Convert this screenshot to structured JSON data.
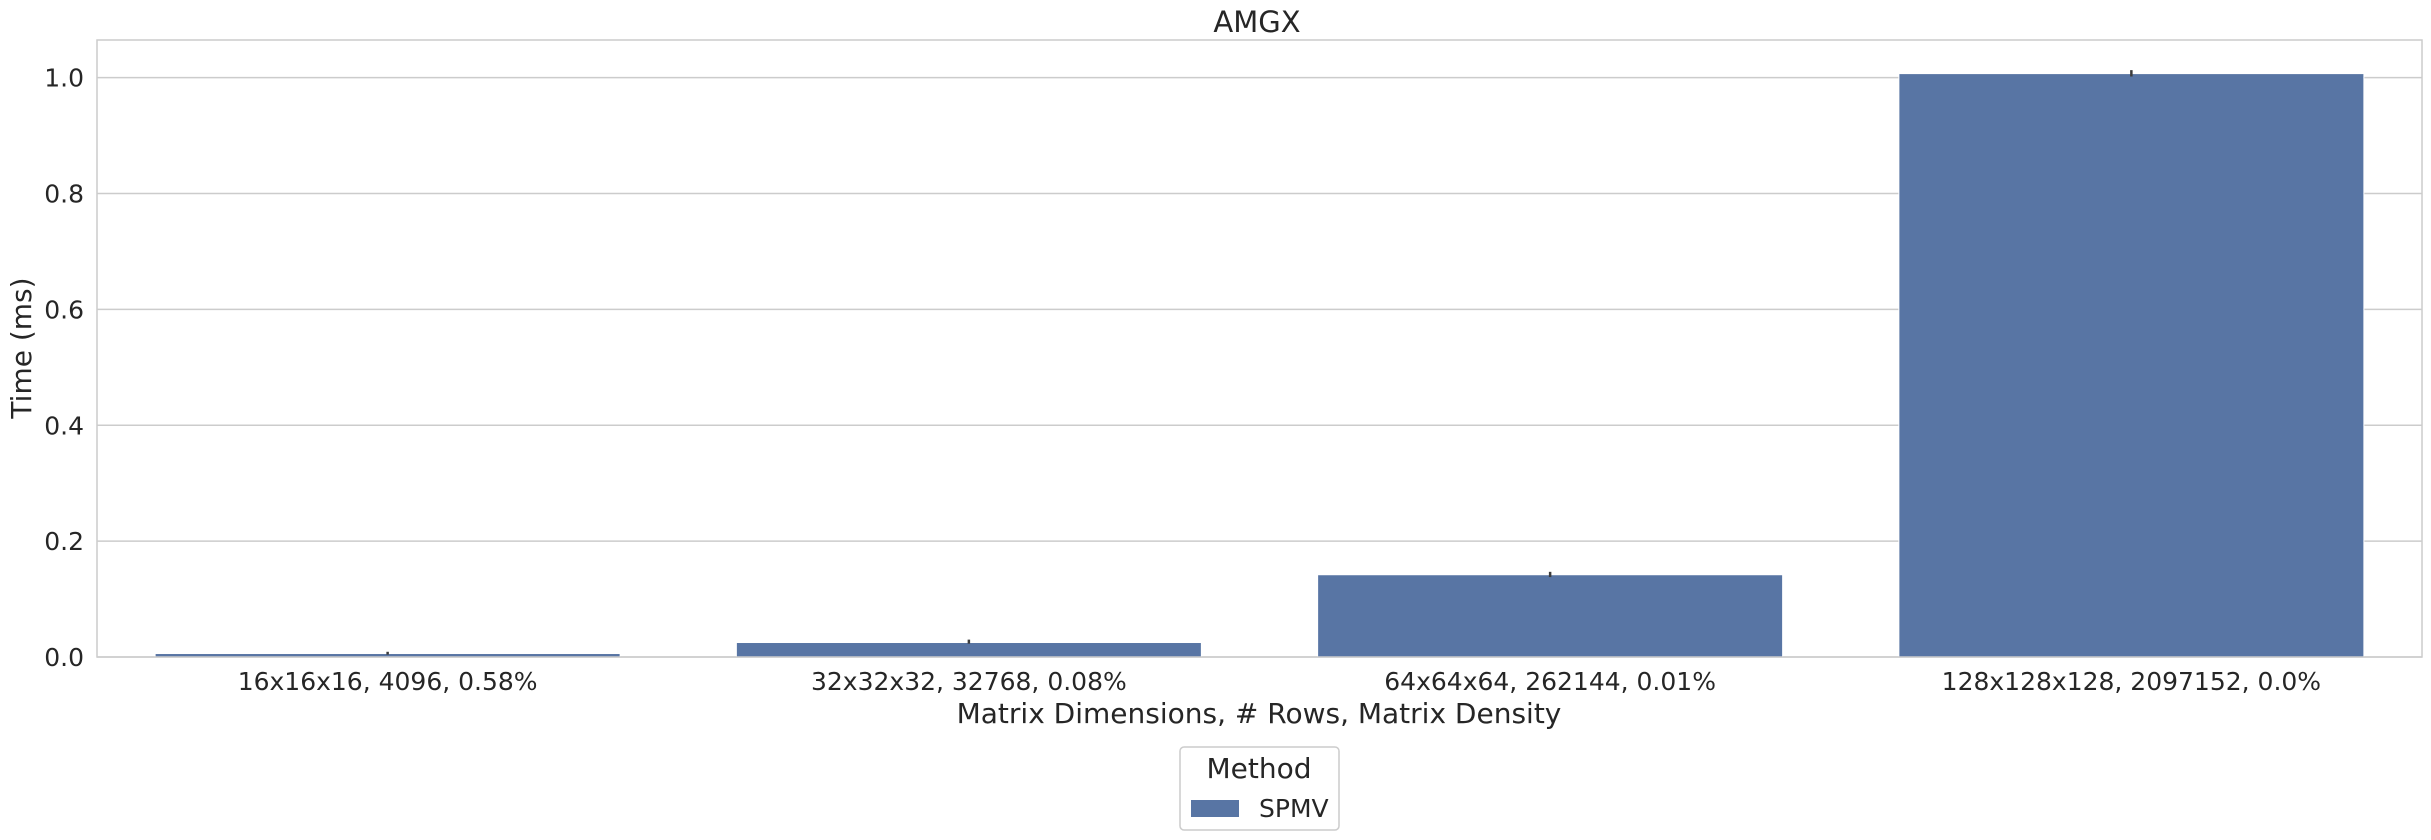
{
  "chart_data": {
    "type": "bar",
    "title": "AMGX",
    "xlabel": "Matrix Dimensions, # Rows, Matrix Density",
    "ylabel": "Time (ms)",
    "categories": [
      "16x16x16, 4096, 0.58%",
      "32x32x32, 32768, 0.08%",
      "64x64x64, 262144, 0.01%",
      "128x128x128, 2097152, 0.0%"
    ],
    "series": [
      {
        "name": "SPMV",
        "values": [
          0.006,
          0.025,
          0.142,
          1.007
        ],
        "error": [
          [
            0.004,
            0.009
          ],
          [
            0.023,
            0.03
          ],
          [
            0.138,
            0.147
          ],
          [
            1.002,
            1.013
          ]
        ],
        "color": "#5875a4"
      }
    ],
    "ylim": [
      0,
      1.065
    ],
    "yticks": [
      0.0,
      0.2,
      0.4,
      0.6,
      0.8,
      1.0
    ],
    "ytick_labels": [
      "0.0",
      "0.2",
      "0.4",
      "0.6",
      "0.8",
      "1.0"
    ],
    "grid": "horizontal",
    "legend": {
      "title": "Method",
      "placement": "bottom-center",
      "entries": [
        "SPMV"
      ]
    }
  }
}
